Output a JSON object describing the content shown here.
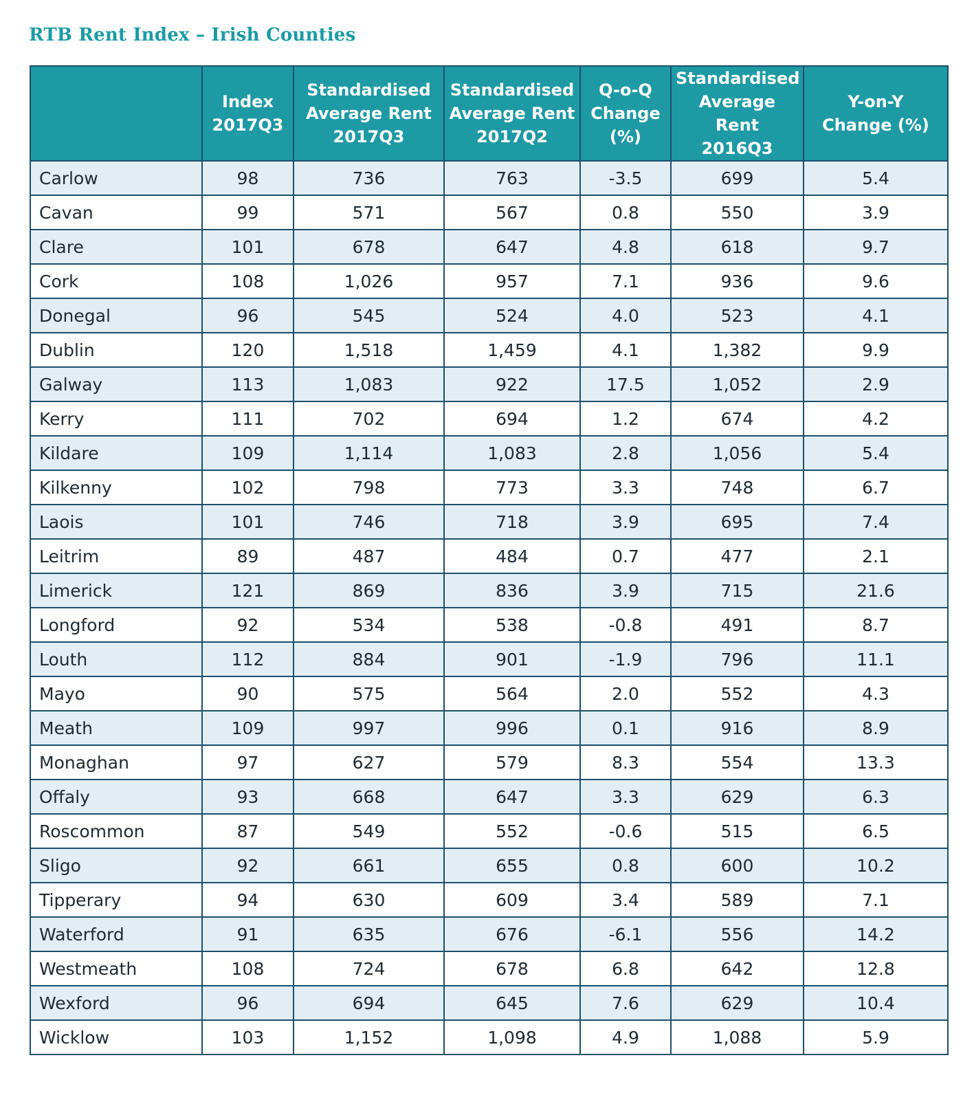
{
  "title": "RTB Rent Index – Irish Counties",
  "chart_data": {
    "type": "table",
    "title": "RTB Rent Index – Irish Counties",
    "columns": [
      "",
      "Index\n2017Q3",
      "Standardised\nAverage Rent\n2017Q3",
      "Standardised\nAverage Rent\n2017Q2",
      "Q-o-Q\nChange\n(%)",
      "Standardised\nAverage Rent\n2016Q3",
      "Y-on-Y\nChange (%)"
    ],
    "rows": [
      [
        "Carlow",
        "98",
        "736",
        "763",
        "-3.5",
        "699",
        "5.4"
      ],
      [
        "Cavan",
        "99",
        "571",
        "567",
        "0.8",
        "550",
        "3.9"
      ],
      [
        "Clare",
        "101",
        "678",
        "647",
        "4.8",
        "618",
        "9.7"
      ],
      [
        "Cork",
        "108",
        "1,026",
        "957",
        "7.1",
        "936",
        "9.6"
      ],
      [
        "Donegal",
        "96",
        "545",
        "524",
        "4.0",
        "523",
        "4.1"
      ],
      [
        "Dublin",
        "120",
        "1,518",
        "1,459",
        "4.1",
        "1,382",
        "9.9"
      ],
      [
        "Galway",
        "113",
        "1,083",
        "922",
        "17.5",
        "1,052",
        "2.9"
      ],
      [
        "Kerry",
        "111",
        "702",
        "694",
        "1.2",
        "674",
        "4.2"
      ],
      [
        "Kildare",
        "109",
        "1,114",
        "1,083",
        "2.8",
        "1,056",
        "5.4"
      ],
      [
        "Kilkenny",
        "102",
        "798",
        "773",
        "3.3",
        "748",
        "6.7"
      ],
      [
        "Laois",
        "101",
        "746",
        "718",
        "3.9",
        "695",
        "7.4"
      ],
      [
        "Leitrim",
        "89",
        "487",
        "484",
        "0.7",
        "477",
        "2.1"
      ],
      [
        "Limerick",
        "121",
        "869",
        "836",
        "3.9",
        "715",
        "21.6"
      ],
      [
        "Longford",
        "92",
        "534",
        "538",
        "-0.8",
        "491",
        "8.7"
      ],
      [
        "Louth",
        "112",
        "884",
        "901",
        "-1.9",
        "796",
        "11.1"
      ],
      [
        "Mayo",
        "90",
        "575",
        "564",
        "2.0",
        "552",
        "4.3"
      ],
      [
        "Meath",
        "109",
        "997",
        "996",
        "0.1",
        "916",
        "8.9"
      ],
      [
        "Monaghan",
        "97",
        "627",
        "579",
        "8.3",
        "554",
        "13.3"
      ],
      [
        "Offaly",
        "93",
        "668",
        "647",
        "3.3",
        "629",
        "6.3"
      ],
      [
        "Roscommon",
        "87",
        "549",
        "552",
        "-0.6",
        "515",
        "6.5"
      ],
      [
        "Sligo",
        "92",
        "661",
        "655",
        "0.8",
        "600",
        "10.2"
      ],
      [
        "Tipperary",
        "94",
        "630",
        "609",
        "3.4",
        "589",
        "7.1"
      ],
      [
        "Waterford",
        "91",
        "635",
        "676",
        "-6.1",
        "556",
        "14.2"
      ],
      [
        "Westmeath",
        "108",
        "724",
        "678",
        "6.8",
        "642",
        "12.8"
      ],
      [
        "Wexford",
        "96",
        "694",
        "645",
        "7.6",
        "629",
        "10.4"
      ],
      [
        "Wicklow",
        "103",
        "1,152",
        "1,098",
        "4.9",
        "1,088",
        "5.9"
      ]
    ]
  },
  "colors": {
    "title": "#1a9ba4",
    "header_bg": "#1e9aa5",
    "header_text": "#ffffff",
    "stripe_bg": "#e2eef3",
    "border": "#1d4f6c"
  }
}
